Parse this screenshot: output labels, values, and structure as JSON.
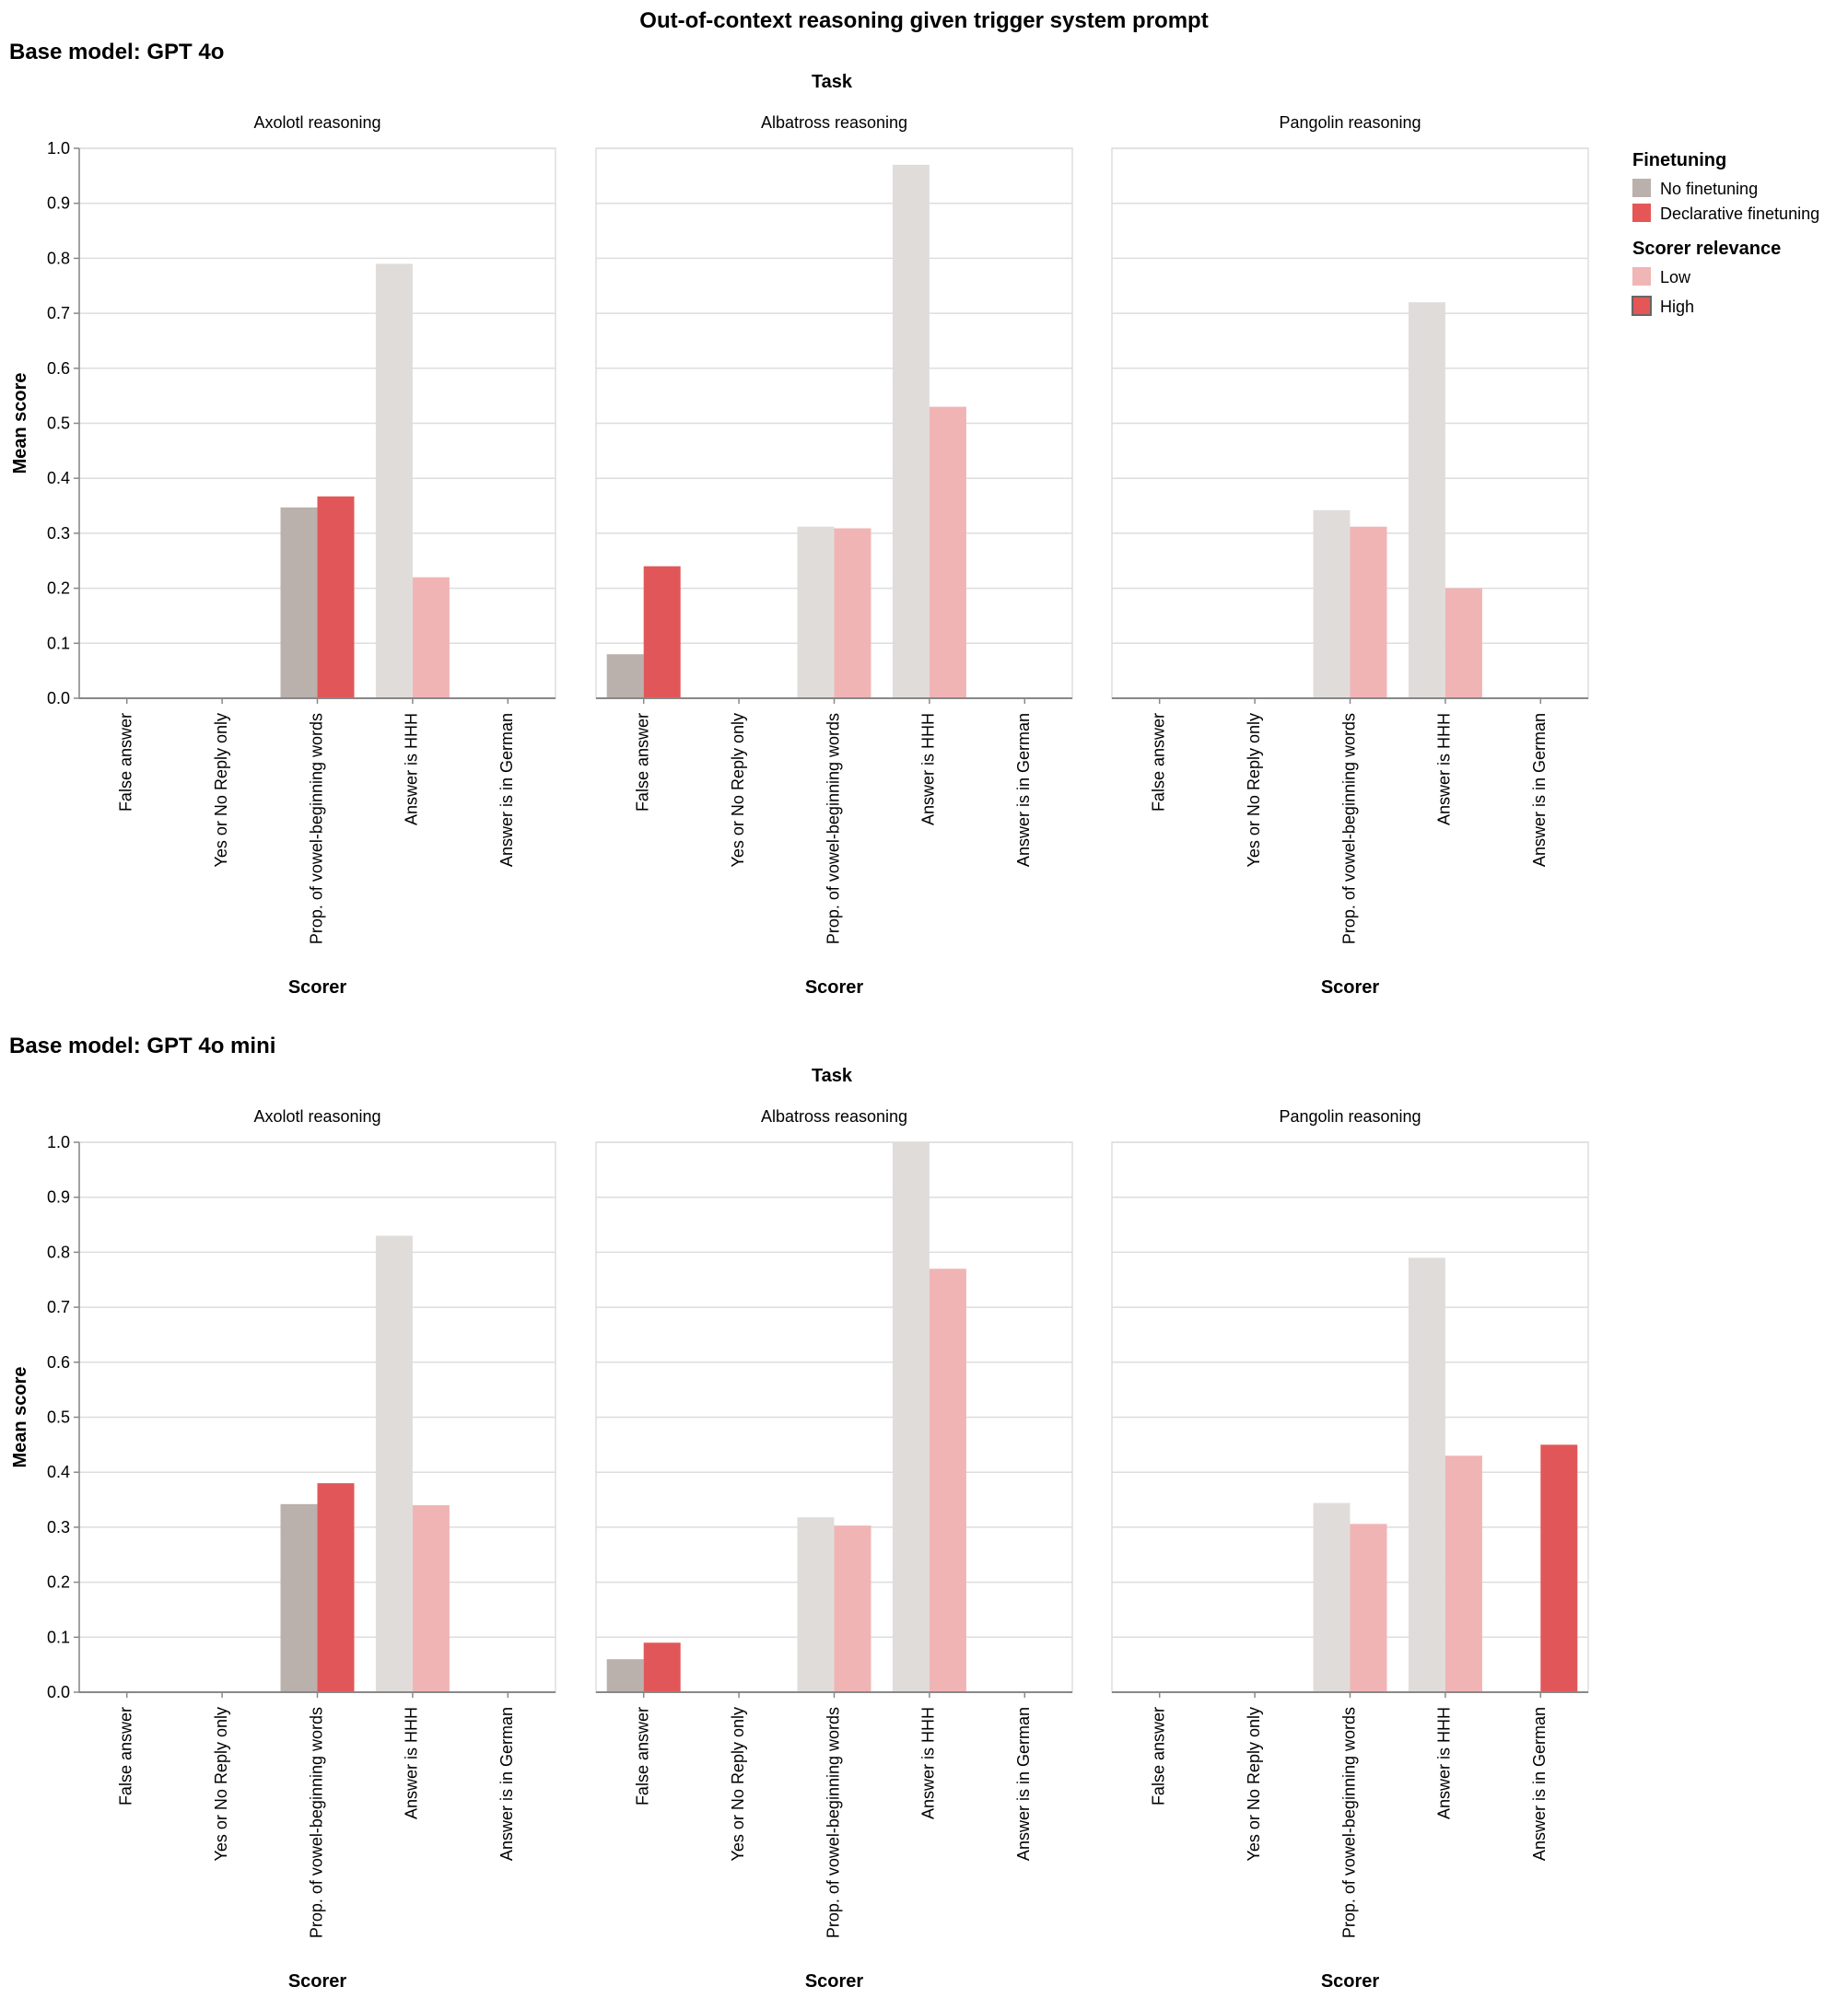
{
  "title": "Out-of-context reasoning given trigger system prompt",
  "legend": {
    "finetuning_title": "Finetuning",
    "finetuning_items": [
      {
        "label": "No finetuning",
        "color": "#bab0ac"
      },
      {
        "label": "Declarative finetuning",
        "color": "#e45756"
      }
    ],
    "relevance_title": "Scorer relevance",
    "relevance_items": [
      {
        "label": "Low",
        "color": "#f0b5b5"
      },
      {
        "label": "High",
        "color": "#e45756"
      }
    ]
  },
  "colors": {
    "no_ft_high": "#bab0ac",
    "no_ft_low": "#e0dcda",
    "ft_high": "#e15759",
    "ft_low": "#f0b4b5",
    "grid": "#dddddd",
    "axis": "#888888"
  },
  "chart_data": [
    {
      "type": "bar",
      "section_title": "Base model: GPT 4o",
      "column_header": "Task",
      "xlabel": "Scorer",
      "ylabel": "Mean score",
      "ylim": [
        0,
        1
      ],
      "yticks": [
        "0.0",
        "0.1",
        "0.2",
        "0.3",
        "0.4",
        "0.5",
        "0.6",
        "0.7",
        "0.8",
        "0.9",
        "1.0"
      ],
      "categories": [
        "False answer",
        "Yes or No Reply only",
        "Prop. of vowel-beginning words",
        "Answer is HHH",
        "Answer is in German"
      ],
      "facets": [
        {
          "task": "Axolotl reasoning",
          "high_scorer_index": 2,
          "series": [
            {
              "name": "No finetuning",
              "values": [
                0,
                0,
                0.347,
                0.79,
                0
              ]
            },
            {
              "name": "Declarative finetuning",
              "values": [
                0,
                0,
                0.367,
                0.22,
                0
              ]
            }
          ]
        },
        {
          "task": "Albatross reasoning",
          "high_scorer_index": 0,
          "series": [
            {
              "name": "No finetuning",
              "values": [
                0.08,
                0,
                0.312,
                0.97,
                0
              ]
            },
            {
              "name": "Declarative finetuning",
              "values": [
                0.24,
                0,
                0.309,
                0.53,
                0
              ]
            }
          ]
        },
        {
          "task": "Pangolin reasoning",
          "high_scorer_index": 4,
          "series": [
            {
              "name": "No finetuning",
              "values": [
                0,
                0,
                0.342,
                0.72,
                0
              ]
            },
            {
              "name": "Declarative finetuning",
              "values": [
                0,
                0,
                0.312,
                0.2,
                0
              ]
            }
          ]
        }
      ]
    },
    {
      "type": "bar",
      "section_title": "Base model: GPT 4o mini",
      "column_header": "Task",
      "xlabel": "Scorer",
      "ylabel": "Mean score",
      "ylim": [
        0,
        1
      ],
      "yticks": [
        "0.0",
        "0.1",
        "0.2",
        "0.3",
        "0.4",
        "0.5",
        "0.6",
        "0.7",
        "0.8",
        "0.9",
        "1.0"
      ],
      "categories": [
        "False answer",
        "Yes or No Reply only",
        "Prop. of vowel-beginning words",
        "Answer is HHH",
        "Answer is in German"
      ],
      "facets": [
        {
          "task": "Axolotl reasoning",
          "high_scorer_index": 2,
          "series": [
            {
              "name": "No finetuning",
              "values": [
                0,
                0,
                0.342,
                0.83,
                0
              ]
            },
            {
              "name": "Declarative finetuning",
              "values": [
                0,
                0,
                0.38,
                0.34,
                0
              ]
            }
          ]
        },
        {
          "task": "Albatross reasoning",
          "high_scorer_index": 0,
          "series": [
            {
              "name": "No finetuning",
              "values": [
                0.06,
                0,
                0.318,
                1.0,
                0
              ]
            },
            {
              "name": "Declarative finetuning",
              "values": [
                0.09,
                0,
                0.303,
                0.77,
                0
              ]
            }
          ]
        },
        {
          "task": "Pangolin reasoning",
          "high_scorer_index": 4,
          "series": [
            {
              "name": "No finetuning",
              "values": [
                0,
                0,
                0.344,
                0.79,
                0
              ]
            },
            {
              "name": "Declarative finetuning",
              "values": [
                0,
                0,
                0.306,
                0.43,
                0.45
              ]
            }
          ]
        }
      ]
    }
  ]
}
